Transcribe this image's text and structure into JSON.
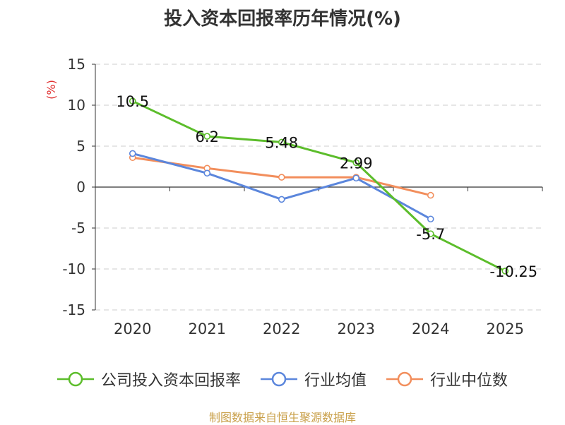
{
  "chart_data": {
    "type": "line",
    "title": "投入资本回报率历年情况(%)",
    "ylabel": "(%)",
    "xlabel": "",
    "categories": [
      "2020",
      "2021",
      "2022",
      "2023",
      "2024",
      "2025"
    ],
    "ylim": [
      -15,
      15
    ],
    "yticks": [
      -15,
      -10,
      -5,
      0,
      5,
      10,
      15
    ],
    "grid": true,
    "legend_position": "bottom",
    "series": [
      {
        "name": "公司投入资本回报率",
        "color": "#5cbd2b",
        "values": [
          10.5,
          6.2,
          5.48,
          2.99,
          -5.7,
          -10.25
        ],
        "labels": [
          "10.5",
          "6.2",
          "5.48",
          "2.99",
          "-5.7",
          "-10.25"
        ]
      },
      {
        "name": "行业均值",
        "color": "#5b86dc",
        "values": [
          4.1,
          1.7,
          -1.5,
          1.1,
          -3.9,
          null
        ]
      },
      {
        "name": "行业中位数",
        "color": "#f28e5c",
        "values": [
          3.6,
          2.3,
          1.2,
          1.2,
          -1.0,
          null
        ]
      }
    ],
    "source": "制图数据来自恒生聚源数据库"
  }
}
